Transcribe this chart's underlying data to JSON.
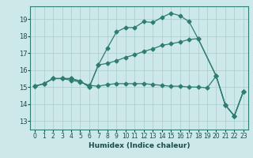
{
  "xlabel": "Humidex (Indice chaleur)",
  "bg_color": "#cce8e8",
  "line_color": "#2e7d6e",
  "grid_color": "#aacccc",
  "xlim": [
    -0.5,
    23.5
  ],
  "ylim": [
    12.5,
    19.75
  ],
  "yticks": [
    13,
    14,
    15,
    16,
    17,
    18,
    19
  ],
  "xticks": [
    0,
    1,
    2,
    3,
    4,
    5,
    6,
    7,
    8,
    9,
    10,
    11,
    12,
    13,
    14,
    15,
    16,
    17,
    18,
    19,
    20,
    21,
    22,
    23
  ],
  "line1_x": [
    0,
    1,
    2,
    3,
    4,
    5,
    6,
    7,
    8,
    9,
    10,
    11,
    12,
    13,
    14,
    15,
    16,
    17,
    18,
    20,
    21,
    22,
    23
  ],
  "line1_y": [
    15.05,
    15.2,
    15.5,
    15.5,
    15.5,
    15.35,
    15.0,
    16.3,
    17.3,
    18.25,
    18.5,
    18.5,
    18.85,
    18.8,
    19.1,
    19.35,
    19.2,
    18.85,
    17.85,
    15.65,
    13.95,
    13.3,
    14.75
  ],
  "line2_x": [
    0,
    1,
    2,
    3,
    4,
    5,
    6,
    7,
    8,
    9,
    10,
    11,
    12,
    13,
    14,
    15,
    16,
    17,
    18,
    20,
    21,
    22,
    23
  ],
  "line2_y": [
    15.05,
    15.2,
    15.5,
    15.5,
    15.5,
    15.35,
    15.0,
    16.3,
    16.4,
    16.55,
    16.75,
    16.9,
    17.1,
    17.25,
    17.45,
    17.55,
    17.65,
    17.8,
    17.85,
    15.65,
    13.95,
    13.3,
    14.75
  ],
  "line3_x": [
    0,
    1,
    2,
    3,
    4,
    5,
    6,
    7,
    8,
    9,
    10,
    11,
    12,
    13,
    14,
    15,
    16,
    17,
    18,
    19,
    20,
    21,
    22,
    23
  ],
  "line3_y": [
    15.05,
    15.2,
    15.5,
    15.5,
    15.4,
    15.3,
    15.1,
    15.05,
    15.15,
    15.2,
    15.2,
    15.2,
    15.2,
    15.15,
    15.1,
    15.05,
    15.05,
    15.0,
    15.0,
    14.95,
    15.65,
    13.95,
    13.3,
    14.75
  ],
  "xlabel_fontsize": 6.5,
  "tick_fontsize": 5.5,
  "spine_color": "#2e7d6e"
}
